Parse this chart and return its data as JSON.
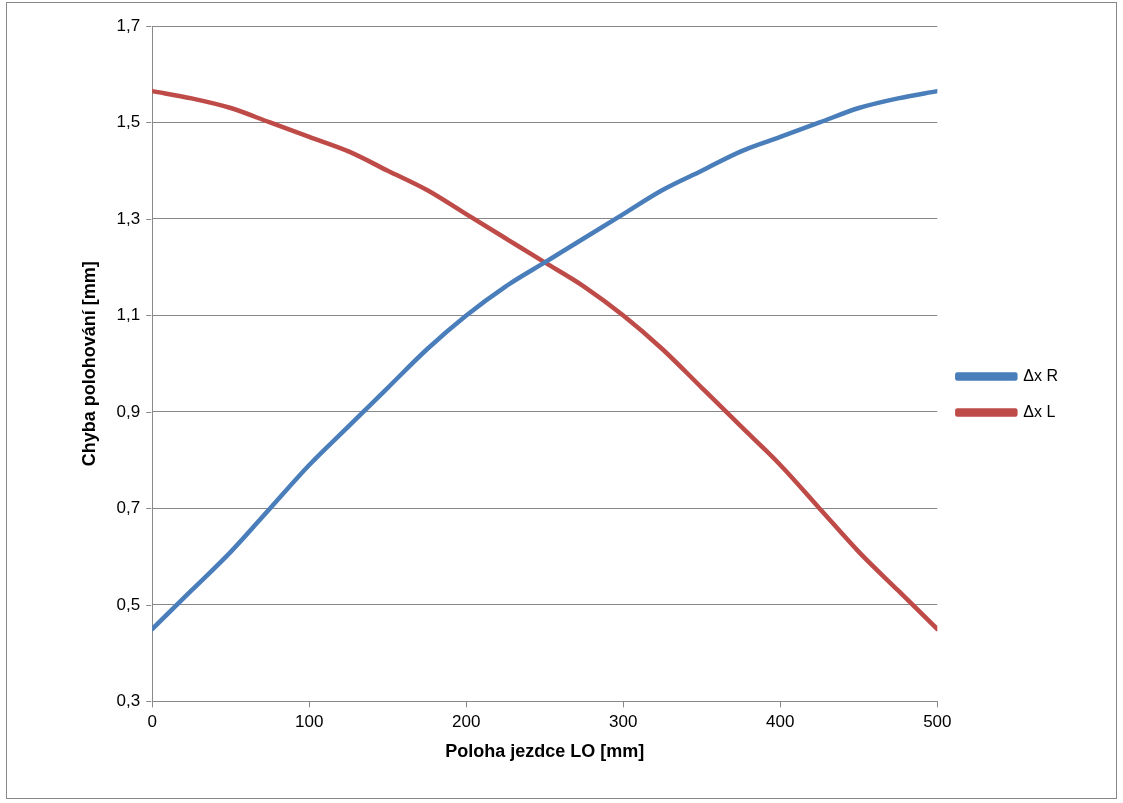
{
  "chart_data": {
    "type": "line",
    "xlabel": "Poloha jezdce LO [mm]",
    "ylabel": "Chyba polohování [mm]",
    "x": [
      0,
      25,
      50,
      75,
      100,
      125,
      150,
      175,
      200,
      225,
      250,
      275,
      300,
      325,
      350,
      375,
      400,
      425,
      450,
      475,
      500
    ],
    "series": [
      {
        "name": "Δx R",
        "color": "#4a7ebb",
        "values": [
          0.45,
          0.53,
          0.61,
          0.7,
          0.79,
          0.87,
          0.95,
          1.03,
          1.1,
          1.16,
          1.21,
          1.26,
          1.31,
          1.36,
          1.4,
          1.44,
          1.47,
          1.5,
          1.53,
          1.55,
          1.565
        ]
      },
      {
        "name": "Δx L",
        "color": "#be4b48",
        "values": [
          1.565,
          1.55,
          1.53,
          1.5,
          1.47,
          1.44,
          1.4,
          1.36,
          1.31,
          1.26,
          1.21,
          1.16,
          1.1,
          1.03,
          0.95,
          0.87,
          0.79,
          0.7,
          0.61,
          0.53,
          0.45
        ]
      }
    ],
    "xlim": [
      0,
      500
    ],
    "xticks": [
      0,
      100,
      200,
      300,
      400,
      500
    ],
    "ylim": [
      0.3,
      1.7
    ],
    "yticks": [
      {
        "value": 0.3,
        "label": "0,3"
      },
      {
        "value": 0.5,
        "label": "0,5"
      },
      {
        "value": 0.7,
        "label": "0,7"
      },
      {
        "value": 0.9,
        "label": "0,9"
      },
      {
        "value": 1.1,
        "label": "1,1"
      },
      {
        "value": 1.3,
        "label": "1,3"
      },
      {
        "value": 1.5,
        "label": "1,5"
      },
      {
        "value": 1.7,
        "label": "1,7"
      }
    ],
    "grid": "y",
    "legend": "right",
    "marker": "none",
    "line_style": "solid"
  }
}
